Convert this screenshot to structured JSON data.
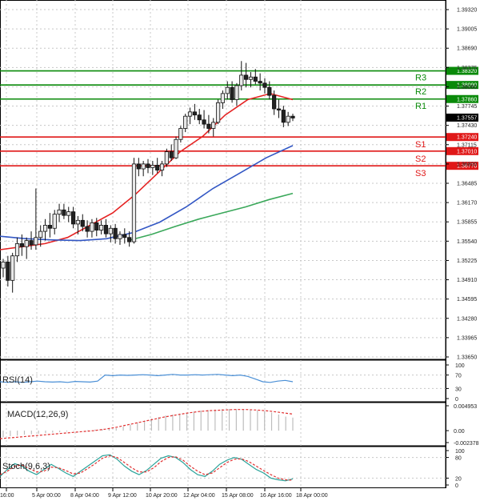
{
  "colors": {
    "background": "#ffffff",
    "grid": "#c8c8c8",
    "resistance": "#0a8a0a",
    "support": "#e01818",
    "ma_fast": "#e52222",
    "ma_mid": "#3357c4",
    "ma_slow": "#3aa85a",
    "bull": "#e8e8e8",
    "bear": "#222222",
    "rsi": "#4a8fd6",
    "macd_signal": "#e03030",
    "stoch_main": "#2aa39a",
    "stoch_signal": "#e03030"
  },
  "chart_data": [
    {
      "type": "candlestick",
      "price_axis": [
        "1.39320",
        "1.39005",
        "1.38690",
        "1.38375",
        "1.38060",
        "1.37745",
        "1.37430",
        "1.37115",
        "1.36800",
        "1.36485",
        "1.36170",
        "1.35855",
        "1.35540",
        "1.35225",
        "1.34910",
        "1.34595",
        "1.34280",
        "1.33965",
        "1.33650"
      ],
      "ylim": [
        1.3365,
        1.3932
      ],
      "x_labels": [
        "16:00",
        "5 Apr 00:00",
        "8 Apr 04:00",
        "9 Apr 12:00",
        "10 Apr 20:00",
        "12 Apr 04:00",
        "15 Apr 08:00",
        "16 Apr 16:00",
        "18 Apr 00:00"
      ],
      "levels": [
        {
          "name": "R3",
          "value": 1.3832,
          "tag": "1.38320",
          "kind": "resistance"
        },
        {
          "name": "R2",
          "value": 1.3809,
          "tag": "1.38090",
          "kind": "resistance"
        },
        {
          "name": "R1",
          "value": 1.3786,
          "tag": "1.37860",
          "kind": "resistance"
        },
        {
          "name": "S1",
          "value": 1.3724,
          "tag": "1.37240",
          "kind": "support"
        },
        {
          "name": "S2",
          "value": 1.3701,
          "tag": "1.37010",
          "kind": "support"
        },
        {
          "name": "S3",
          "value": 1.3677,
          "tag": "1.36770",
          "kind": "support"
        }
      ],
      "current_price": {
        "value": 1.37557,
        "tag": "1.37557"
      },
      "candles": [
        [
          1.351,
          1.3525,
          1.3495,
          1.352
        ],
        [
          1.352,
          1.353,
          1.348,
          1.349
        ],
        [
          1.349,
          1.3535,
          1.347,
          1.353
        ],
        [
          1.353,
          1.356,
          1.352,
          1.355
        ],
        [
          1.355,
          1.3565,
          1.353,
          1.3545
        ],
        [
          1.3545,
          1.356,
          1.3525,
          1.3555
        ],
        [
          1.3555,
          1.357,
          1.354,
          1.3548
        ],
        [
          1.3548,
          1.364,
          1.354,
          1.356
        ],
        [
          1.356,
          1.358,
          1.3545,
          1.357
        ],
        [
          1.357,
          1.359,
          1.3555,
          1.358
        ],
        [
          1.358,
          1.36,
          1.356,
          1.3575
        ],
        [
          1.3575,
          1.3605,
          1.3565,
          1.3598
        ],
        [
          1.3598,
          1.3615,
          1.3585,
          1.3605
        ],
        [
          1.3605,
          1.3615,
          1.359,
          1.3596
        ],
        [
          1.3596,
          1.361,
          1.3585,
          1.3602
        ],
        [
          1.3602,
          1.361,
          1.3575,
          1.3582
        ],
        [
          1.3582,
          1.3595,
          1.3565,
          1.3588
        ],
        [
          1.3588,
          1.3598,
          1.357,
          1.3578
        ],
        [
          1.3578,
          1.3588,
          1.356,
          1.357
        ],
        [
          1.357,
          1.359,
          1.356,
          1.3584
        ],
        [
          1.3584,
          1.3592,
          1.3562,
          1.3572
        ],
        [
          1.3572,
          1.3588,
          1.3565,
          1.358
        ],
        [
          1.358,
          1.359,
          1.356,
          1.3566
        ],
        [
          1.3566,
          1.358,
          1.3552,
          1.3575
        ],
        [
          1.3575,
          1.3582,
          1.355,
          1.3558
        ],
        [
          1.3558,
          1.357,
          1.3548,
          1.3565
        ],
        [
          1.3565,
          1.3575,
          1.355,
          1.356
        ],
        [
          1.356,
          1.357,
          1.3545,
          1.3553
        ],
        [
          1.3553,
          1.369,
          1.355,
          1.368
        ],
        [
          1.368,
          1.369,
          1.366,
          1.3672
        ],
        [
          1.3672,
          1.3685,
          1.366,
          1.368
        ],
        [
          1.368,
          1.3688,
          1.3665,
          1.3674
        ],
        [
          1.3674,
          1.3685,
          1.3662,
          1.3678
        ],
        [
          1.3678,
          1.369,
          1.3665,
          1.367
        ],
        [
          1.367,
          1.3685,
          1.366,
          1.368
        ],
        [
          1.368,
          1.3705,
          1.3675,
          1.37
        ],
        [
          1.37,
          1.3712,
          1.3685,
          1.369
        ],
        [
          1.369,
          1.3725,
          1.3688,
          1.372
        ],
        [
          1.372,
          1.3742,
          1.3715,
          1.3738
        ],
        [
          1.3738,
          1.3762,
          1.3732,
          1.3758
        ],
        [
          1.3758,
          1.3772,
          1.3745,
          1.3765
        ],
        [
          1.3765,
          1.3778,
          1.3752,
          1.376
        ],
        [
          1.376,
          1.377,
          1.3745,
          1.3752
        ],
        [
          1.3752,
          1.3768,
          1.3738,
          1.3745
        ],
        [
          1.3745,
          1.376,
          1.373,
          1.3738
        ],
        [
          1.3738,
          1.3755,
          1.3725,
          1.3748
        ],
        [
          1.3748,
          1.3785,
          1.3745,
          1.378
        ],
        [
          1.378,
          1.38,
          1.377,
          1.3795
        ],
        [
          1.3795,
          1.3815,
          1.3785,
          1.3805
        ],
        [
          1.3805,
          1.3815,
          1.378,
          1.3785
        ],
        [
          1.3785,
          1.3812,
          1.3775,
          1.3808
        ],
        [
          1.3808,
          1.3848,
          1.38,
          1.3825
        ],
        [
          1.3825,
          1.3845,
          1.3805,
          1.3818
        ],
        [
          1.3818,
          1.383,
          1.3805,
          1.3822
        ],
        [
          1.3822,
          1.3835,
          1.381,
          1.3815
        ],
        [
          1.3815,
          1.3828,
          1.38,
          1.3812
        ],
        [
          1.3812,
          1.382,
          1.3795,
          1.3805
        ],
        [
          1.3805,
          1.3815,
          1.3785,
          1.3792
        ],
        [
          1.3792,
          1.38,
          1.376,
          1.377
        ],
        [
          1.377,
          1.3785,
          1.3755,
          1.3768
        ],
        [
          1.3768,
          1.3775,
          1.374,
          1.3748
        ],
        [
          1.3748,
          1.3765,
          1.3742,
          1.3758
        ],
        [
          1.3758,
          1.3762,
          1.375,
          1.3755
        ]
      ],
      "ma_fast": [
        1.354,
        1.3545,
        1.355,
        1.356,
        1.358,
        1.36,
        1.363,
        1.3665,
        1.37,
        1.3725,
        1.376,
        1.3785,
        1.3795,
        1.3785
      ],
      "ma_mid": [
        1.3562,
        1.3558,
        1.3556,
        1.3555,
        1.3558,
        1.3568,
        1.3585,
        1.361,
        1.364,
        1.3665,
        1.369,
        1.371
      ],
      "ma_slow": [
        1.3555,
        1.3565,
        1.3578,
        1.359,
        1.36,
        1.361,
        1.3622,
        1.3632
      ]
    },
    {
      "type": "line",
      "title": "RSI(14)",
      "ticks": [
        "100",
        "70",
        "30",
        "0"
      ],
      "ylim": [
        0,
        100
      ],
      "values": [
        50,
        48,
        50,
        48,
        50,
        52,
        50,
        49,
        50,
        48,
        51,
        50,
        49,
        52,
        70,
        68,
        70,
        69,
        70,
        71,
        70,
        68,
        70,
        72,
        70,
        70,
        71,
        70,
        71,
        72,
        70,
        68,
        70,
        66,
        58,
        50,
        48,
        52,
        54,
        50
      ]
    },
    {
      "type": "bar",
      "title": "MACD(12,26,9)",
      "ticks": [
        "0.004953",
        "0.00",
        "-0.002378"
      ],
      "ylim": [
        -0.002378,
        0.004953
      ],
      "values": [
        -0.0013,
        -0.0011,
        -0.001,
        -0.0008,
        -0.0007,
        -0.0006,
        -0.0005,
        -0.0004,
        -0.0003,
        -0.0002,
        -0.0001,
        0.0,
        0.0001,
        0.0002,
        0.0003,
        0.0004,
        0.0005,
        0.0008,
        0.0012,
        0.0016,
        0.002,
        0.0024,
        0.0027,
        0.003,
        0.0032,
        0.0034,
        0.0036,
        0.0038,
        0.004,
        0.0041,
        0.0042,
        0.0043,
        0.0043,
        0.0043,
        0.0042,
        0.0041,
        0.004,
        0.0039,
        0.0036,
        0.0032,
        0.0028,
        0.0026
      ],
      "signal": [
        -0.0016,
        -0.0014,
        -0.0012,
        -0.001,
        -0.0008,
        -0.0006,
        -0.0004,
        -0.0002,
        0.0,
        0.0003,
        0.0007,
        0.0012,
        0.0017,
        0.0022,
        0.0027,
        0.0031,
        0.0035,
        0.0038,
        0.004,
        0.0041,
        0.0042,
        0.0042,
        0.0041,
        0.0039,
        0.0036,
        0.0033
      ]
    },
    {
      "type": "line",
      "title": "Stoch(9,6,3)",
      "ticks": [
        "100",
        "80",
        "20",
        "0"
      ],
      "ylim": [
        0,
        100
      ],
      "main": [
        25,
        45,
        62,
        55,
        40,
        30,
        45,
        60,
        48,
        35,
        25,
        40,
        55,
        70,
        85,
        88,
        75,
        55,
        40,
        30,
        42,
        60,
        78,
        85,
        80,
        65,
        45,
        30,
        25,
        40,
        60,
        72,
        80,
        75,
        60,
        45,
        35,
        20,
        15,
        12,
        18
      ],
      "signal": [
        30,
        40,
        55,
        58,
        48,
        38,
        40,
        52,
        50,
        42,
        32,
        35,
        48,
        62,
        78,
        85,
        80,
        65,
        50,
        38,
        38,
        50,
        68,
        80,
        82,
        72,
        55,
        40,
        30,
        35,
        50,
        65,
        75,
        76,
        68,
        55,
        42,
        30,
        20,
        15,
        14
      ]
    }
  ]
}
